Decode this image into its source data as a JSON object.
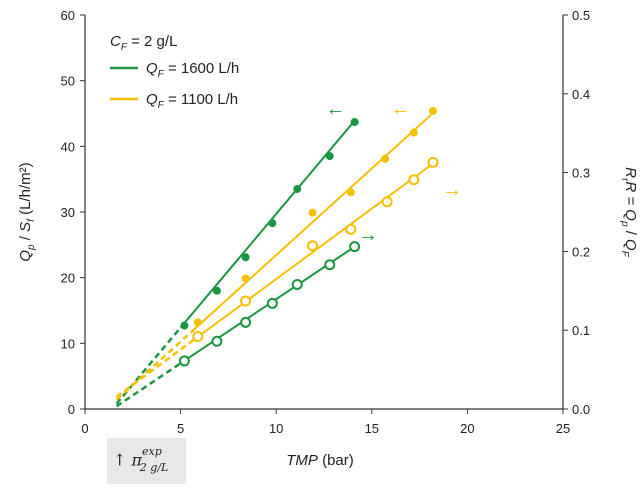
{
  "chart_data": {
    "type": "scatter",
    "title": "",
    "xlabel": "TMP (bar)",
    "ylabel_left": "Q_p / S_f (L/h/m²)",
    "ylabel_right": "R_r R = Q_p / Q_F",
    "xlim": [
      0,
      25
    ],
    "ylim_left": [
      0,
      60
    ],
    "ylim_right": [
      0,
      0.5
    ],
    "x_ticks": [
      "0",
      "5",
      "10",
      "15",
      "20",
      "25"
    ],
    "y_left_ticks": [
      "0",
      "10",
      "20",
      "30",
      "40",
      "50",
      "60"
    ],
    "y_right_ticks": [
      "0.0",
      "0.1",
      "0.2",
      "0.3",
      "0.4",
      "0.5"
    ],
    "grid": false,
    "legend": {
      "position": "top-left",
      "header": "C_F = 2 g/L",
      "entries": [
        {
          "label": "Q_F = 1600 L/h",
          "color": "#1a9641"
        },
        {
          "label": "Q_F = 1100 L/h",
          "color": "#f5c000"
        }
      ]
    },
    "series": [
      {
        "key": "flux_1600",
        "axis": "left",
        "color": "#1a9641",
        "marker": "filled",
        "x": [
          5.2,
          6.9,
          8.4,
          9.8,
          11.1,
          12.8,
          14.1
        ],
        "y": [
          12.7,
          18.0,
          23.1,
          28.3,
          33.5,
          38.5,
          43.7
        ],
        "fit_x": [
          5.0,
          14.1
        ],
        "fit_y": [
          12.4,
          43.9
        ],
        "extrap_x": [
          1.65,
          5.0
        ]
      },
      {
        "key": "flux_1100",
        "axis": "left",
        "color": "#f5c000",
        "marker": "filled",
        "x": [
          5.9,
          8.4,
          11.9,
          13.9,
          15.7,
          17.2,
          18.2
        ],
        "y": [
          13.2,
          19.9,
          29.9,
          33.0,
          38.1,
          42.1,
          45.4
        ],
        "fit_x": [
          5.7,
          18.1
        ],
        "fit_y": [
          12.1,
          44.8
        ],
        "extrap_x": [
          1.65,
          5.7
        ]
      },
      {
        "key": "ratio_1100",
        "axis": "right",
        "color": "#f5c000",
        "marker": "open",
        "x": [
          5.9,
          8.4,
          11.9,
          13.9,
          15.8,
          17.2,
          18.2
        ],
        "y": [
          0.092,
          0.137,
          0.207,
          0.228,
          0.263,
          0.291,
          0.313
        ],
        "fit_x": [
          5.7,
          18.4
        ],
        "fit_y": [
          0.088,
          0.315
        ],
        "extrap_x": [
          1.65,
          5.7
        ]
      },
      {
        "key": "ratio_1600",
        "axis": "right",
        "color": "#1a9641",
        "marker": "open",
        "x": [
          5.2,
          6.9,
          8.4,
          9.8,
          11.1,
          12.8,
          14.1
        ],
        "y": [
          0.061,
          0.086,
          0.11,
          0.134,
          0.158,
          0.183,
          0.206
        ],
        "fit_x": [
          5.0,
          14.1
        ],
        "fit_y": [
          0.058,
          0.206
        ],
        "extrap_x": [
          1.65,
          5.0
        ]
      }
    ],
    "annotations": [
      {
        "text": "←",
        "color": "#1a9641",
        "x": 13.1,
        "y": 45.7,
        "axis": "left"
      },
      {
        "text": "←",
        "color": "#f5c000",
        "x": 16.5,
        "y": 45.7,
        "axis": "left"
      },
      {
        "text": "→",
        "color": "#f5c000",
        "x": 19.2,
        "y": 0.278,
        "axis": "right"
      },
      {
        "text": "→",
        "color": "#1a9641",
        "x": 14.8,
        "y": 0.221,
        "axis": "right"
      }
    ],
    "intercept_label": "↑ π_{2 g/L}^{exp}"
  }
}
